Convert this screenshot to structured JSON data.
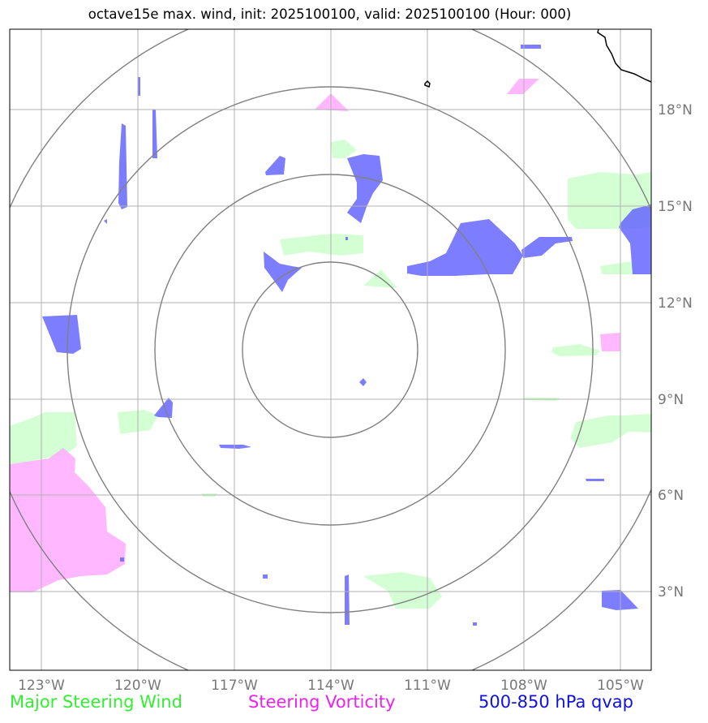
{
  "title": "octave15e max. wind, init: 2025100100, valid: 2025100100 (Hour: 000)",
  "x_axis_labels": [
    "123°W",
    "120°W",
    "117°W",
    "114°W",
    "111°W",
    "108°W",
    "105°W"
  ],
  "y_axis_labels": [
    "18°N",
    "15°N",
    "12°N",
    "9°N",
    "6°N",
    "3°N"
  ],
  "legend": {
    "wind": "Major Steering Wind",
    "vorticity": "Steering Vorticity",
    "qvap": "500-850 hPa qvap"
  },
  "colors": {
    "wind": "#33ee33",
    "vorticity": "#ee22ee",
    "qvap": "#1111dd",
    "wind_fill": "#ccffcc",
    "vorticity_fill": "#ffaaff",
    "qvap_fill": "#6666ff",
    "grid": "#b0b0b0",
    "range_rings": "#808080"
  }
}
